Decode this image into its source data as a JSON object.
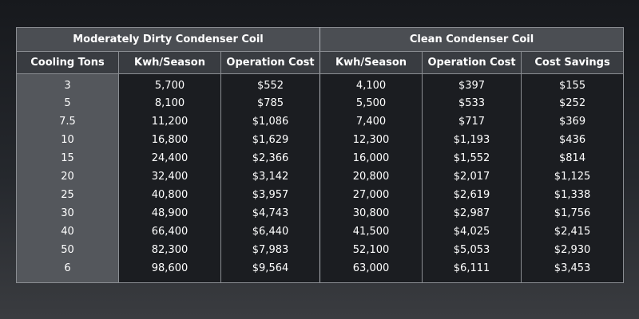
{
  "table": {
    "groups": [
      {
        "label": "Moderately Dirty Condenser Coil",
        "span": 3
      },
      {
        "label": "Clean Condenser Coil",
        "span": 3
      }
    ],
    "columns": [
      "Cooling Tons",
      "Kwh/Season",
      "Operation Cost",
      "Kwh/Season",
      "Operation Cost",
      "Cost Savings"
    ],
    "rows": [
      [
        "3",
        "5,700",
        "$552",
        "4,100",
        "$397",
        "$155"
      ],
      [
        "5",
        "8,100",
        "$785",
        "5,500",
        "$533",
        "$252"
      ],
      [
        "7.5",
        "11,200",
        "$1,086",
        "7,400",
        "$717",
        "$369"
      ],
      [
        "10",
        "16,800",
        "$1,629",
        "12,300",
        "$1,193",
        "$436"
      ],
      [
        "15",
        "24,400",
        "$2,366",
        "16,000",
        "$1,552",
        "$814"
      ],
      [
        "20",
        "32,400",
        "$3,142",
        "20,800",
        "$2,017",
        "$1,125"
      ],
      [
        "25",
        "40,800",
        "$3,957",
        "27,000",
        "$2,619",
        "$1,338"
      ],
      [
        "30",
        "48,900",
        "$4,743",
        "30,800",
        "$2,987",
        "$1,756"
      ],
      [
        "40",
        "66,400",
        "$6,440",
        "41,500",
        "$4,025",
        "$2,415"
      ],
      [
        "50",
        "82,300",
        "$7,983",
        "52,100",
        "$5,053",
        "$2,930"
      ],
      [
        "6",
        "98,600",
        "$9,564",
        "63,000",
        "$6,111",
        "$3,453"
      ]
    ]
  },
  "colors": {
    "group_header_bg": "#4b4e53",
    "column_header_bg": "#393c41",
    "first_column_bg": "#54575c",
    "body_bg": "#1b1d21",
    "border": "#8a8d92",
    "text": "#ffffff"
  }
}
